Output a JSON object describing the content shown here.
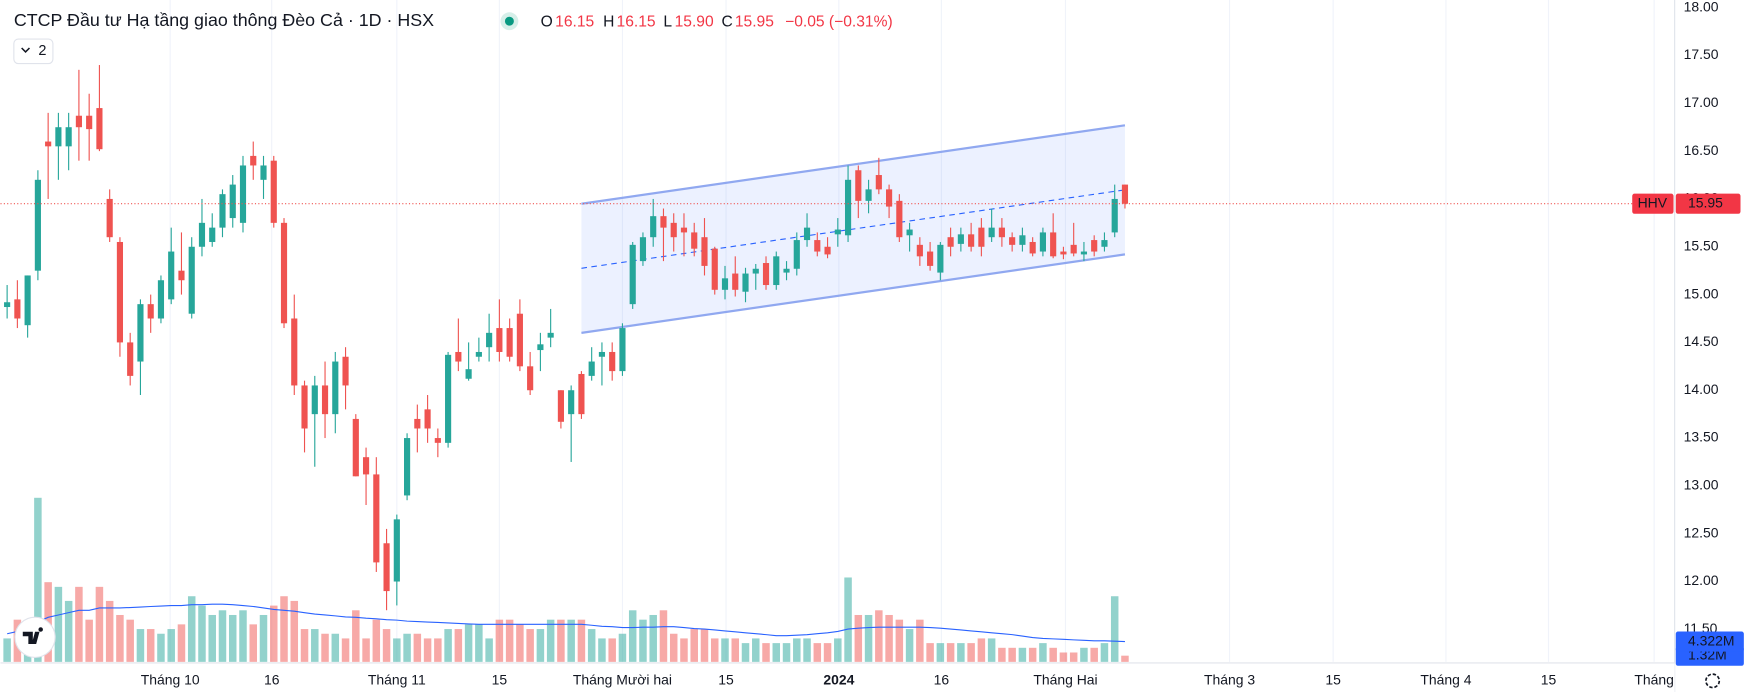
{
  "chart_data": {
    "type": "candlestick",
    "title": "CTCP Đầu tư Hạ tầng giao thông Đèo Cả · 1D · HSX",
    "legend": {
      "o": "O",
      "open": "16.15",
      "h": "H",
      "high": "16.15",
      "l": "L",
      "low": "15.90",
      "c": "C",
      "close": "15.95",
      "change": "−0.05 (−0.31%)"
    },
    "indicator_count": 2,
    "open": [
      14.87,
      14.95,
      14.68,
      15.25,
      16.6,
      16.55,
      16.55,
      16.87,
      16.87,
      16.95,
      16.0,
      15.55,
      14.5,
      14.3,
      14.9,
      14.75,
      14.95,
      15.25,
      14.8,
      15.5,
      15.55,
      15.7,
      15.8,
      15.75,
      16.45,
      16.2,
      16.4,
      15.75,
      14.75,
      14.05,
      13.75,
      14.05,
      13.75,
      14.35,
      13.7,
      13.3,
      13.12,
      12.4,
      12.0,
      12.9,
      13.7,
      13.8,
      13.5,
      13.45,
      14.4,
      14.12,
      14.35,
      14.45,
      14.65,
      14.65,
      14.8,
      14.25,
      14.42,
      14.55,
      14.0,
      13.75,
      14.17,
      14.15,
      14.35,
      14.4,
      14.2,
      14.9,
      15.35,
      15.6,
      15.82,
      15.75,
      15.7,
      15.65,
      15.6,
      15.48,
      15.05,
      15.22,
      15.03,
      15.22,
      15.33,
      15.1,
      15.23,
      15.27,
      15.57,
      15.57,
      15.5,
      15.63,
      15.62,
      16.3,
      15.98,
      16.25,
      16.1,
      15.98,
      15.62,
      15.52,
      15.45,
      15.23,
      15.6,
      15.53,
      15.63,
      15.7,
      15.6,
      15.7,
      15.6,
      15.52,
      15.55,
      15.45,
      15.65,
      15.45,
      15.52,
      15.42,
      15.57,
      15.5,
      15.65,
      16.15
    ],
    "high": [
      15.1,
      15.15,
      15.2,
      16.3,
      16.9,
      16.9,
      16.9,
      17.35,
      17.1,
      17.4,
      16.1,
      15.6,
      14.6,
      14.95,
      15.0,
      15.2,
      15.7,
      15.65,
      15.6,
      16.0,
      15.85,
      16.1,
      16.25,
      16.45,
      16.6,
      16.45,
      16.45,
      15.8,
      15.0,
      14.1,
      14.15,
      14.3,
      14.4,
      14.45,
      13.75,
      13.4,
      13.3,
      12.55,
      12.7,
      13.55,
      13.85,
      13.95,
      13.6,
      14.4,
      14.75,
      14.5,
      14.55,
      14.8,
      14.95,
      14.75,
      14.95,
      14.4,
      14.6,
      14.85,
      14.0,
      14.05,
      14.2,
      14.45,
      14.5,
      14.5,
      14.7,
      15.55,
      15.65,
      16.0,
      15.9,
      15.85,
      15.85,
      15.75,
      15.8,
      15.5,
      15.3,
      15.4,
      15.28,
      15.32,
      15.4,
      15.45,
      15.35,
      15.65,
      15.85,
      15.65,
      15.6,
      15.8,
      16.35,
      16.35,
      16.2,
      16.43,
      16.15,
      16.05,
      15.75,
      15.6,
      15.55,
      15.55,
      15.7,
      15.7,
      15.75,
      15.8,
      15.9,
      15.8,
      15.65,
      15.7,
      15.6,
      15.7,
      15.85,
      15.5,
      15.75,
      15.55,
      15.62,
      15.65,
      16.15,
      16.15
    ],
    "low": [
      14.75,
      14.65,
      14.55,
      15.15,
      16.0,
      16.2,
      16.3,
      16.4,
      16.4,
      16.5,
      15.55,
      14.35,
      14.05,
      13.95,
      14.6,
      14.7,
      14.9,
      15.0,
      14.75,
      15.4,
      15.5,
      15.6,
      15.7,
      15.65,
      16.2,
      16.0,
      15.7,
      14.65,
      13.95,
      13.35,
      13.2,
      13.5,
      13.55,
      13.8,
      13.1,
      12.8,
      12.1,
      11.7,
      11.75,
      12.85,
      13.35,
      13.45,
      13.3,
      13.4,
      14.2,
      14.1,
      14.3,
      14.3,
      14.3,
      14.3,
      14.2,
      13.95,
      14.2,
      14.45,
      13.6,
      13.25,
      13.7,
      14.1,
      14.05,
      14.1,
      14.15,
      14.85,
      15.3,
      15.5,
      15.35,
      15.45,
      15.4,
      15.4,
      15.2,
      15.0,
      14.95,
      14.98,
      14.92,
      15.05,
      15.05,
      15.05,
      15.15,
      15.2,
      15.5,
      15.4,
      15.38,
      15.5,
      15.55,
      15.8,
      15.85,
      16.05,
      15.8,
      15.55,
      15.45,
      15.3,
      15.25,
      15.15,
      15.4,
      15.45,
      15.45,
      15.4,
      15.55,
      15.5,
      15.45,
      15.45,
      15.4,
      15.4,
      15.38,
      15.37,
      15.4,
      15.35,
      15.4,
      15.45,
      15.6,
      15.9
    ],
    "close": [
      14.92,
      14.75,
      15.2,
      16.2,
      16.55,
      16.75,
      16.75,
      16.75,
      16.73,
      16.52,
      15.6,
      14.5,
      14.15,
      14.9,
      14.75,
      15.15,
      15.45,
      15.15,
      15.5,
      15.75,
      15.7,
      16.05,
      16.15,
      16.35,
      16.35,
      16.35,
      15.75,
      14.7,
      14.05,
      13.6,
      14.05,
      13.75,
      14.3,
      14.05,
      13.1,
      13.12,
      12.2,
      11.9,
      12.65,
      13.5,
      13.6,
      13.6,
      13.45,
      14.37,
      14.3,
      14.22,
      14.4,
      14.6,
      14.4,
      14.35,
      14.25,
      14.0,
      14.48,
      14.6,
      13.67,
      14.0,
      13.75,
      14.3,
      14.4,
      14.2,
      14.65,
      15.52,
      15.6,
      15.82,
      15.7,
      15.6,
      15.65,
      15.48,
      15.3,
      15.05,
      15.17,
      15.05,
      15.22,
      15.27,
      15.1,
      15.4,
      15.27,
      15.57,
      15.7,
      15.45,
      15.42,
      15.68,
      16.2,
      15.98,
      16.1,
      16.1,
      15.92,
      15.6,
      15.68,
      15.4,
      15.3,
      15.52,
      15.5,
      15.63,
      15.5,
      15.5,
      15.7,
      15.6,
      15.52,
      15.62,
      15.43,
      15.65,
      15.4,
      15.42,
      15.43,
      15.45,
      15.45,
      15.57,
      16.0,
      15.95
    ],
    "volume": [
      5,
      9,
      8,
      35,
      17,
      16,
      13,
      16,
      9,
      16,
      13,
      10,
      9,
      7,
      7,
      6,
      7,
      8,
      14,
      12,
      10,
      11,
      10,
      11,
      8,
      10,
      12,
      14,
      13,
      7,
      7,
      6,
      6,
      5,
      11,
      5,
      9,
      7,
      5,
      6,
      6,
      5,
      5,
      7,
      7,
      8,
      8,
      5,
      9,
      9,
      8,
      7,
      7,
      9,
      9,
      9,
      9,
      7,
      5,
      5,
      6,
      11,
      9,
      10,
      11,
      6,
      5,
      7,
      7,
      5,
      5,
      5,
      4,
      5,
      4,
      4,
      4,
      5,
      5,
      4,
      4,
      5,
      18,
      10,
      10,
      11,
      10,
      9,
      7,
      9,
      4,
      4,
      4,
      4,
      4,
      5,
      5,
      3,
      3,
      3,
      3,
      4,
      3,
      2,
      2,
      3,
      3,
      4,
      14,
      1.32
    ],
    "volume_ma": [
      6,
      6.5,
      7,
      8.5,
      9.5,
      10,
      10.5,
      11,
      11,
      11.5,
      11.5,
      11.5,
      11.6,
      11.7,
      11.8,
      11.9,
      12,
      12,
      12.2,
      12.2,
      12.3,
      12.3,
      12.2,
      12,
      11.8,
      11.5,
      11.2,
      11,
      10.8,
      10.5,
      10.2,
      10,
      9.8,
      9.6,
      9.5,
      9.3,
      9.2,
      9,
      8.9,
      8.7,
      8.6,
      8.5,
      8.4,
      8.3,
      8.2,
      8.1,
      8,
      8,
      8,
      8,
      8,
      8,
      8,
      8,
      8,
      8,
      8,
      7.8,
      7.6,
      7.5,
      7.3,
      7.3,
      7.4,
      7.4,
      7.5,
      7.5,
      7.3,
      7.1,
      7,
      6.8,
      6.6,
      6.4,
      6.2,
      6,
      5.8,
      5.6,
      5.6,
      5.7,
      5.8,
      6,
      6.2,
      6.5,
      7,
      7.2,
      7.3,
      7.4,
      7.4,
      7.4,
      7.4,
      7.4,
      7.3,
      7.2,
      7,
      6.8,
      6.6,
      6.4,
      6.2,
      6,
      5.8,
      5.5,
      5.2,
      5,
      4.9,
      4.8,
      4.7,
      4.6,
      4.5,
      4.5,
      4.4,
      4.322
    ],
    "volume_ma_label": "4.322M",
    "volume_label": "1.32M",
    "colors": {
      "up": "#26a69a",
      "down": "#ef5350",
      "ma": "#2962ff",
      "channel": "#90a8f0"
    },
    "last_price": {
      "symbol": "HHV",
      "value": 15.95
    },
    "channel": {
      "x": [
        56,
        109
      ],
      "upper": [
        15.95,
        16.77
      ],
      "lower": [
        14.6,
        15.42
      ]
    },
    "grid": true,
    "ylim": [
      11.16,
      18.08
    ],
    "yticks": [
      {
        "value": 11.5,
        "label": "11.50"
      },
      {
        "value": 12,
        "label": "12.00"
      },
      {
        "value": 12.5,
        "label": "12.50"
      },
      {
        "value": 13,
        "label": "13.00"
      },
      {
        "value": 13.5,
        "label": "13.50"
      },
      {
        "value": 14,
        "label": "14.00"
      },
      {
        "value": 14.5,
        "label": "14.50"
      },
      {
        "value": 15,
        "label": "15.00"
      },
      {
        "value": 15.5,
        "label": "15.50"
      },
      {
        "value": 16,
        "label": "16.00"
      },
      {
        "value": 16.5,
        "label": "16.50"
      },
      {
        "value": 17,
        "label": "17.00"
      },
      {
        "value": 17.5,
        "label": "17.50"
      },
      {
        "value": 18,
        "label": "18.00"
      }
    ],
    "xlim": [
      -0.65,
      162.6
    ],
    "xticks": [
      {
        "value": 15.9,
        "label": "Tháng 10"
      },
      {
        "value": 25.8,
        "label": "16"
      },
      {
        "value": 38.0,
        "label": "Tháng 11"
      },
      {
        "value": 48.0,
        "label": "15"
      },
      {
        "value": 60.0,
        "label": "Tháng Mười hai"
      },
      {
        "value": 70.1,
        "label": "15"
      },
      {
        "value": 81.1,
        "label": "2024"
      },
      {
        "value": 91.1,
        "label": "16"
      },
      {
        "value": 103.2,
        "label": "Tháng Hai"
      },
      {
        "value": 119.2,
        "label": "Tháng 3"
      },
      {
        "value": 129.3,
        "label": "15"
      },
      {
        "value": 140.3,
        "label": "Tháng 4"
      },
      {
        "value": 150.3,
        "label": "15"
      },
      {
        "value": 160.6,
        "label": "Tháng"
      }
    ]
  }
}
